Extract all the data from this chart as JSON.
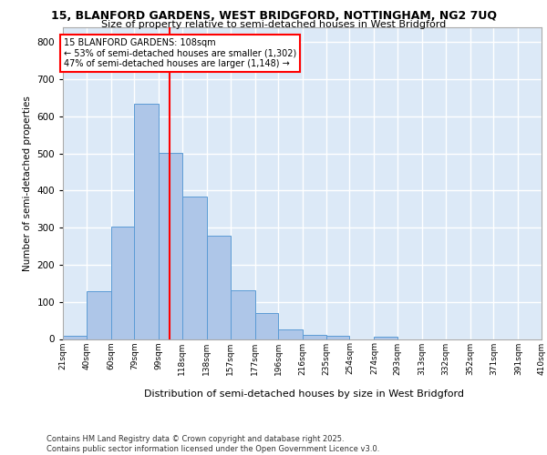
{
  "title_line1": "15, BLANFORD GARDENS, WEST BRIDGFORD, NOTTINGHAM, NG2 7UQ",
  "title_line2": "Size of property relative to semi-detached houses in West Bridgford",
  "xlabel": "Distribution of semi-detached houses by size in West Bridgford",
  "ylabel": "Number of semi-detached properties",
  "footer_line1": "Contains HM Land Registry data © Crown copyright and database right 2025.",
  "footer_line2": "Contains public sector information licensed under the Open Government Licence v3.0.",
  "property_label": "15 BLANFORD GARDENS: 108sqm",
  "smaller_pct": 53,
  "smaller_count": 1302,
  "larger_pct": 47,
  "larger_count": 1148,
  "bin_edges": [
    21,
    40,
    60,
    79,
    99,
    118,
    138,
    157,
    177,
    196,
    216,
    235,
    254,
    274,
    293,
    313,
    332,
    352,
    371,
    391,
    410
  ],
  "bin_labels": [
    "21sqm",
    "40sqm",
    "60sqm",
    "79sqm",
    "99sqm",
    "118sqm",
    "138sqm",
    "157sqm",
    "177sqm",
    "196sqm",
    "216sqm",
    "235sqm",
    "254sqm",
    "274sqm",
    "293sqm",
    "313sqm",
    "332sqm",
    "352sqm",
    "371sqm",
    "391sqm",
    "410sqm"
  ],
  "counts": [
    8,
    128,
    302,
    635,
    502,
    383,
    278,
    130,
    70,
    25,
    12,
    8,
    0,
    5,
    0,
    0,
    0,
    0,
    0,
    0
  ],
  "bar_color": "#aec6e8",
  "bar_edge_color": "#5b9bd5",
  "vline_x": 108,
  "vline_color": "red",
  "background_color": "#dce9f7",
  "grid_color": "#ffffff",
  "ylim": [
    0,
    840
  ],
  "yticks": [
    0,
    100,
    200,
    300,
    400,
    500,
    600,
    700,
    800
  ]
}
